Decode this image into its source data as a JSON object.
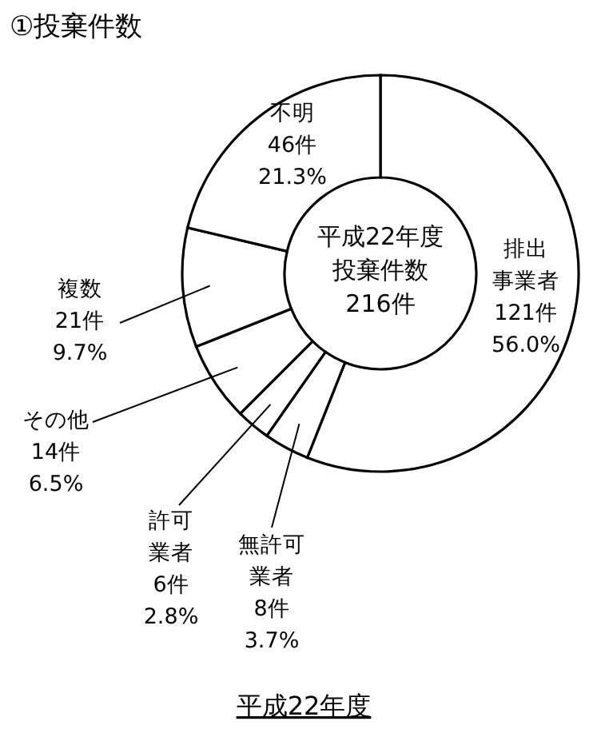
{
  "chart_data": {
    "type": "donut",
    "title": "①投棄件数",
    "categories": [
      "排出事業者",
      "無許可業者",
      "許可業者",
      "その他",
      "複数",
      "不明"
    ],
    "values": [
      121,
      8,
      6,
      14,
      21,
      46
    ],
    "value_labels": [
      "121件\n56.0%",
      "8件\n3.7%",
      "6件\n2.8%",
      "14件\n6.5%",
      "21件\n9.7%",
      "46件\n21.3%"
    ],
    "colors": [
      "#ffffff",
      "#ffffff",
      "#ffffff",
      "#ffffff",
      "#ffffff",
      "#ffffff"
    ],
    "annotations": [
      "平成22年度投棄件数216件",
      "平成22年度"
    ]
  }
}
